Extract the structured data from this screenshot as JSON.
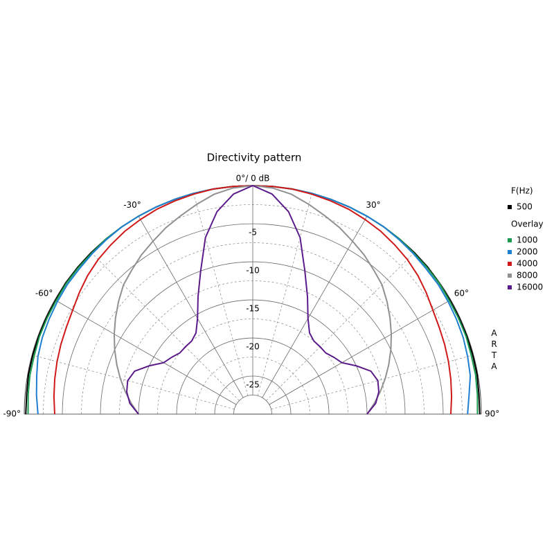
{
  "chart_data": {
    "type": "polar",
    "title": "Directivity pattern",
    "theta": [
      -90,
      -85,
      -80,
      -75,
      -70,
      -65,
      -60,
      -55,
      -50,
      -45,
      -40,
      -35,
      -30,
      -25,
      -20,
      -15,
      -10,
      -5,
      0,
      5,
      10,
      15,
      20,
      25,
      30,
      35,
      40,
      45,
      50,
      55,
      60,
      65,
      70,
      75,
      80,
      85,
      90
    ],
    "thetalim": [
      -90,
      90
    ],
    "thetaticks": [
      {
        "value": -90,
        "label": "-90°"
      },
      {
        "value": -60,
        "label": "-60°"
      },
      {
        "value": -30,
        "label": "-30°"
      },
      {
        "value": 0,
        "label": "0°/ 0 dB"
      },
      {
        "value": 30,
        "label": "30°"
      },
      {
        "value": 60,
        "label": "60°"
      },
      {
        "value": 90,
        "label": "90°"
      }
    ],
    "rlim": [
      -30,
      0
    ],
    "rticks": [
      -5,
      -10,
      -15,
      -20,
      -25
    ],
    "legend_title": "F(Hz)",
    "overlay_label": "Overlay",
    "watermark": "ARTA",
    "series": [
      {
        "name": "500",
        "color": "#000000",
        "values": [
          -0.2,
          -0.2,
          -0.1,
          -0.1,
          -0.1,
          -0.1,
          -0.1,
          0,
          0,
          0,
          0,
          0,
          0,
          0,
          0,
          0,
          0,
          0,
          0,
          0,
          0,
          0,
          0,
          0,
          0,
          0,
          0,
          0,
          0,
          -0.1,
          -0.1,
          -0.1,
          -0.1,
          -0.1,
          -0.1,
          -0.2,
          -0.2
        ]
      },
      {
        "name": "1000",
        "color": "#1a9a50",
        "values": [
          -0.5,
          -0.4,
          -0.3,
          -0.3,
          -0.2,
          -0.2,
          -0.2,
          -0.1,
          -0.1,
          -0.1,
          0,
          0,
          0,
          0,
          0,
          0,
          0,
          0,
          0,
          0,
          0,
          0,
          0,
          0,
          0,
          0,
          0,
          -0.1,
          -0.1,
          -0.1,
          -0.2,
          -0.2,
          -0.2,
          -0.3,
          -0.3,
          -0.4,
          -0.5
        ]
      },
      {
        "name": "2000",
        "color": "#1e7fd0",
        "values": [
          -1.8,
          -1.5,
          -1.2,
          -0.8,
          -0.6,
          -0.5,
          -0.4,
          -0.3,
          -0.3,
          -0.2,
          -0.1,
          0,
          0,
          0,
          0,
          0,
          0,
          0,
          0,
          0,
          0,
          0,
          0,
          0,
          0,
          0,
          -0.1,
          -0.2,
          -0.3,
          -0.3,
          -0.4,
          -0.5,
          -0.6,
          -0.8,
          -1,
          -1.5,
          -1.8
        ]
      },
      {
        "name": "4000",
        "color": "#d01818",
        "values": [
          -4,
          -3.8,
          -3.6,
          -3.4,
          -3.2,
          -3,
          -2.7,
          -2.2,
          -1.7,
          -1.3,
          -1,
          -0.7,
          -0.5,
          -0.3,
          -0.2,
          -0.1,
          0,
          0,
          0,
          0,
          0,
          -0.1,
          -0.2,
          -0.3,
          -0.5,
          -0.7,
          -1,
          -1.3,
          -1.7,
          -2.2,
          -2.7,
          -3,
          -3.2,
          -3.4,
          -3.6,
          -3.8,
          -4
        ]
      },
      {
        "name": "8000",
        "color": "#909090",
        "values": [
          -15,
          -14,
          -13,
          -12,
          -11,
          -10,
          -9,
          -8,
          -7,
          -6,
          -5.3,
          -4.5,
          -3.8,
          -3,
          -2.3,
          -1.5,
          -0.7,
          -0.2,
          0,
          -0.2,
          -0.7,
          -1.5,
          -2.3,
          -3,
          -3.8,
          -4.5,
          -5.3,
          -6,
          -7,
          -8,
          -9,
          -10,
          -11,
          -12,
          -13,
          -14,
          -15
        ]
      },
      {
        "name": "16000",
        "color": "#5a1a8a",
        "values": [
          -15,
          -13.8,
          -13.2,
          -13,
          -13.5,
          -15,
          -16.5,
          -17,
          -17.5,
          -17.5,
          -17.5,
          -17,
          -15.5,
          -13,
          -10,
          -6,
          -3,
          -1,
          0,
          -1,
          -3,
          -6,
          -10,
          -13,
          -15.5,
          -17,
          -17.5,
          -17.5,
          -17.5,
          -17,
          -16.5,
          -15,
          -13.5,
          -13,
          -13.2,
          -13.8,
          -15
        ]
      }
    ]
  }
}
